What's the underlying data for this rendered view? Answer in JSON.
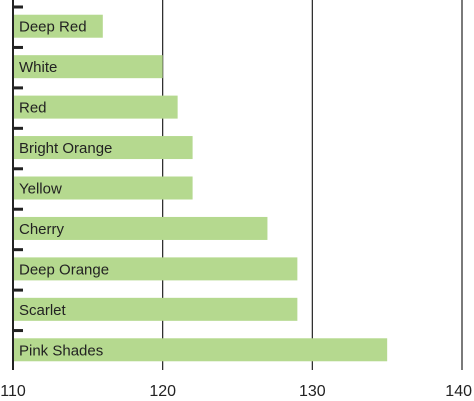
{
  "chart_data": {
    "type": "bar",
    "orientation": "horizontal",
    "categories": [
      "Deep Red",
      "White",
      "Red",
      "Bright Orange",
      "Yellow",
      "Cherry",
      "Deep Orange",
      "Scarlet",
      "Pink Shades"
    ],
    "values": [
      116,
      120,
      121,
      122,
      122,
      127,
      129,
      129,
      135
    ],
    "xlim": [
      110,
      140
    ],
    "xticks": [
      110,
      120,
      130,
      140
    ],
    "xtick_labels": [
      "110",
      "120",
      "130",
      "140"
    ],
    "grid": "vertical at major ticks",
    "bar_color": "#b5d98f",
    "labels_position": "inside bar, left",
    "title": "",
    "xlabel": "",
    "ylabel": ""
  }
}
